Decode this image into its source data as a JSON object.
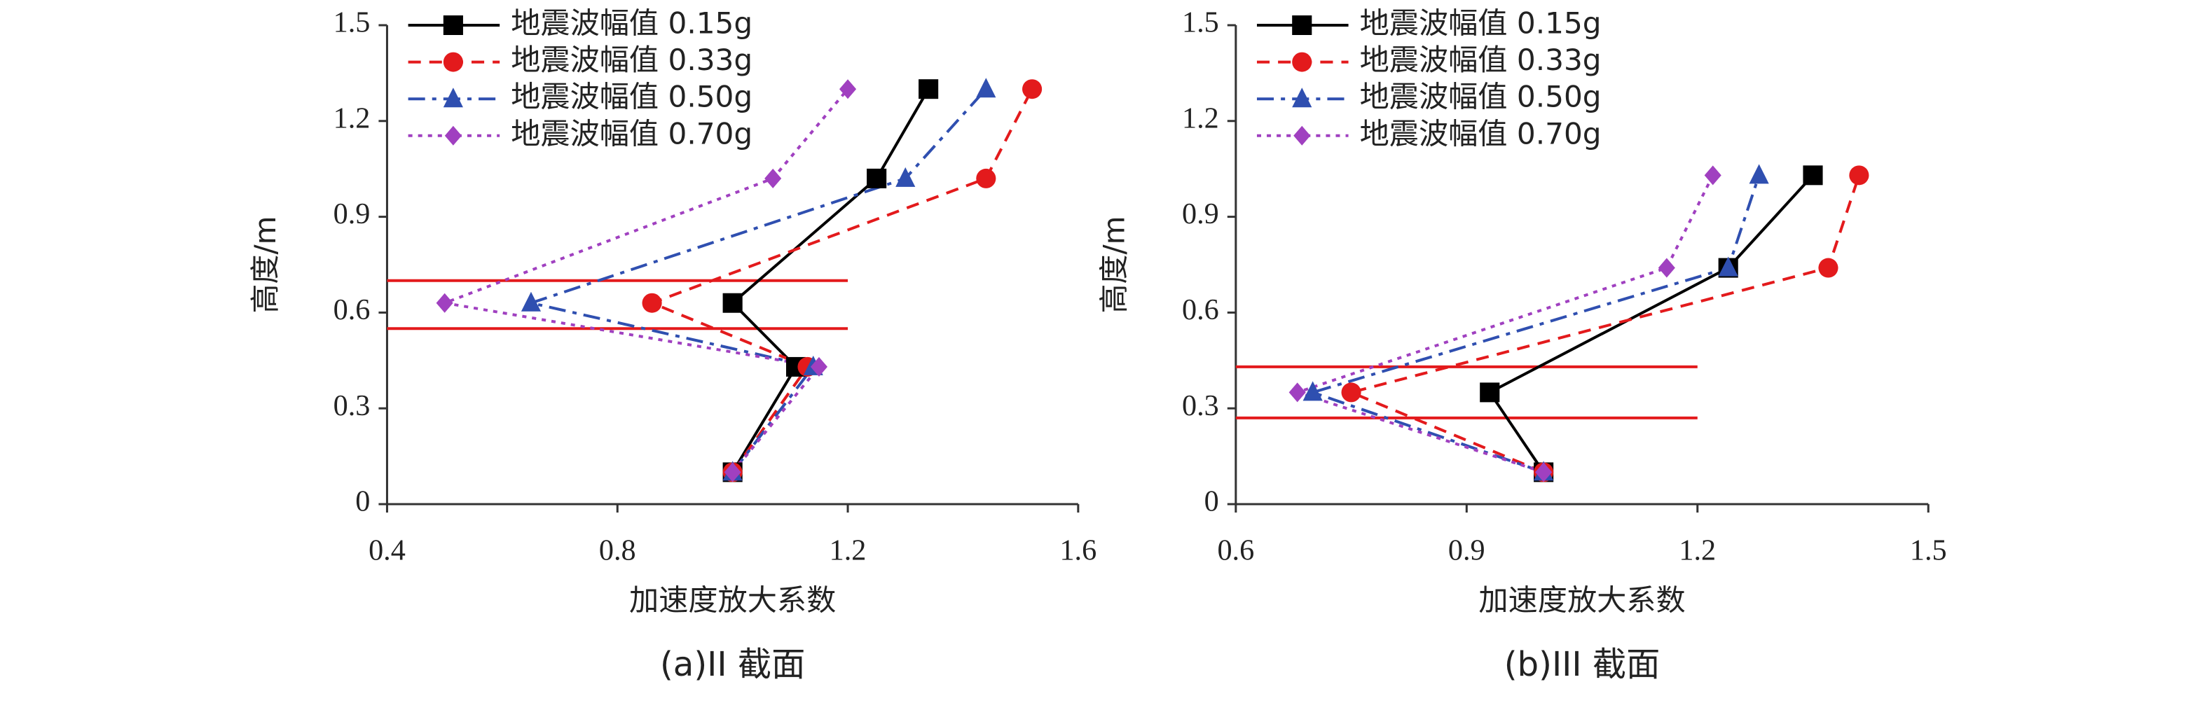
{
  "chart_data": [
    {
      "type": "line",
      "caption": "(a)II 截面",
      "xlabel": "加速度放大系数",
      "ylabel": "高度/m",
      "xlim": [
        0.4,
        1.6
      ],
      "xticks": [
        0.4,
        0.8,
        1.2,
        1.6
      ],
      "ylim": [
        0,
        1.5
      ],
      "yticks": [
        0,
        0.3,
        0.6,
        0.9,
        1.2,
        1.5
      ],
      "y": [
        0.1,
        0.43,
        0.63,
        1.02,
        1.3
      ],
      "hlines": {
        "values": [
          0.7,
          0.55
        ],
        "x_end": 1.2,
        "color": "#e31a1c"
      },
      "series": [
        {
          "name": "地震波幅值 0.15g",
          "color": "#000000",
          "marker": "square",
          "dash": "solid",
          "values": [
            1.0,
            1.11,
            1.0,
            1.25,
            1.34
          ]
        },
        {
          "name": "地震波幅值 0.33g",
          "color": "#e31a1c",
          "marker": "circle",
          "dash": "dashed",
          "values": [
            1.0,
            1.13,
            0.86,
            1.44,
            1.52
          ]
        },
        {
          "name": "地震波幅值 0.50g",
          "color": "#2f4fb0",
          "marker": "triangle",
          "dash": "dashdot",
          "values": [
            1.0,
            1.14,
            0.65,
            1.3,
            1.44
          ]
        },
        {
          "name": "地震波幅值 0.70g",
          "color": "#a040c0",
          "marker": "diamond",
          "dash": "dotted",
          "values": [
            1.0,
            1.15,
            0.5,
            1.07,
            1.2
          ]
        }
      ]
    },
    {
      "type": "line",
      "caption": "(b)III 截面",
      "xlabel": "加速度放大系数",
      "ylabel": "高度/m",
      "xlim": [
        0.6,
        1.5
      ],
      "xticks": [
        0.6,
        0.9,
        1.2,
        1.5
      ],
      "ylim": [
        0,
        1.5
      ],
      "yticks": [
        0,
        0.3,
        0.6,
        0.9,
        1.2,
        1.5
      ],
      "y": [
        0.1,
        0.35,
        0.74,
        1.03
      ],
      "hlines": {
        "values": [
          0.43,
          0.27
        ],
        "x_end": 1.2,
        "color": "#e31a1c"
      },
      "series": [
        {
          "name": "地震波幅值 0.15g",
          "color": "#000000",
          "marker": "square",
          "dash": "solid",
          "values": [
            1.0,
            0.93,
            1.24,
            1.35
          ]
        },
        {
          "name": "地震波幅值 0.33g",
          "color": "#e31a1c",
          "marker": "circle",
          "dash": "dashed",
          "values": [
            1.0,
            0.75,
            1.37,
            1.41
          ]
        },
        {
          "name": "地震波幅值 0.50g",
          "color": "#2f4fb0",
          "marker": "triangle",
          "dash": "dashdot",
          "values": [
            1.0,
            0.7,
            1.24,
            1.28
          ]
        },
        {
          "name": "地震波幅值 0.70g",
          "color": "#a040c0",
          "marker": "diamond",
          "dash": "dotted",
          "values": [
            1.0,
            0.68,
            1.16,
            1.22
          ]
        }
      ]
    }
  ]
}
